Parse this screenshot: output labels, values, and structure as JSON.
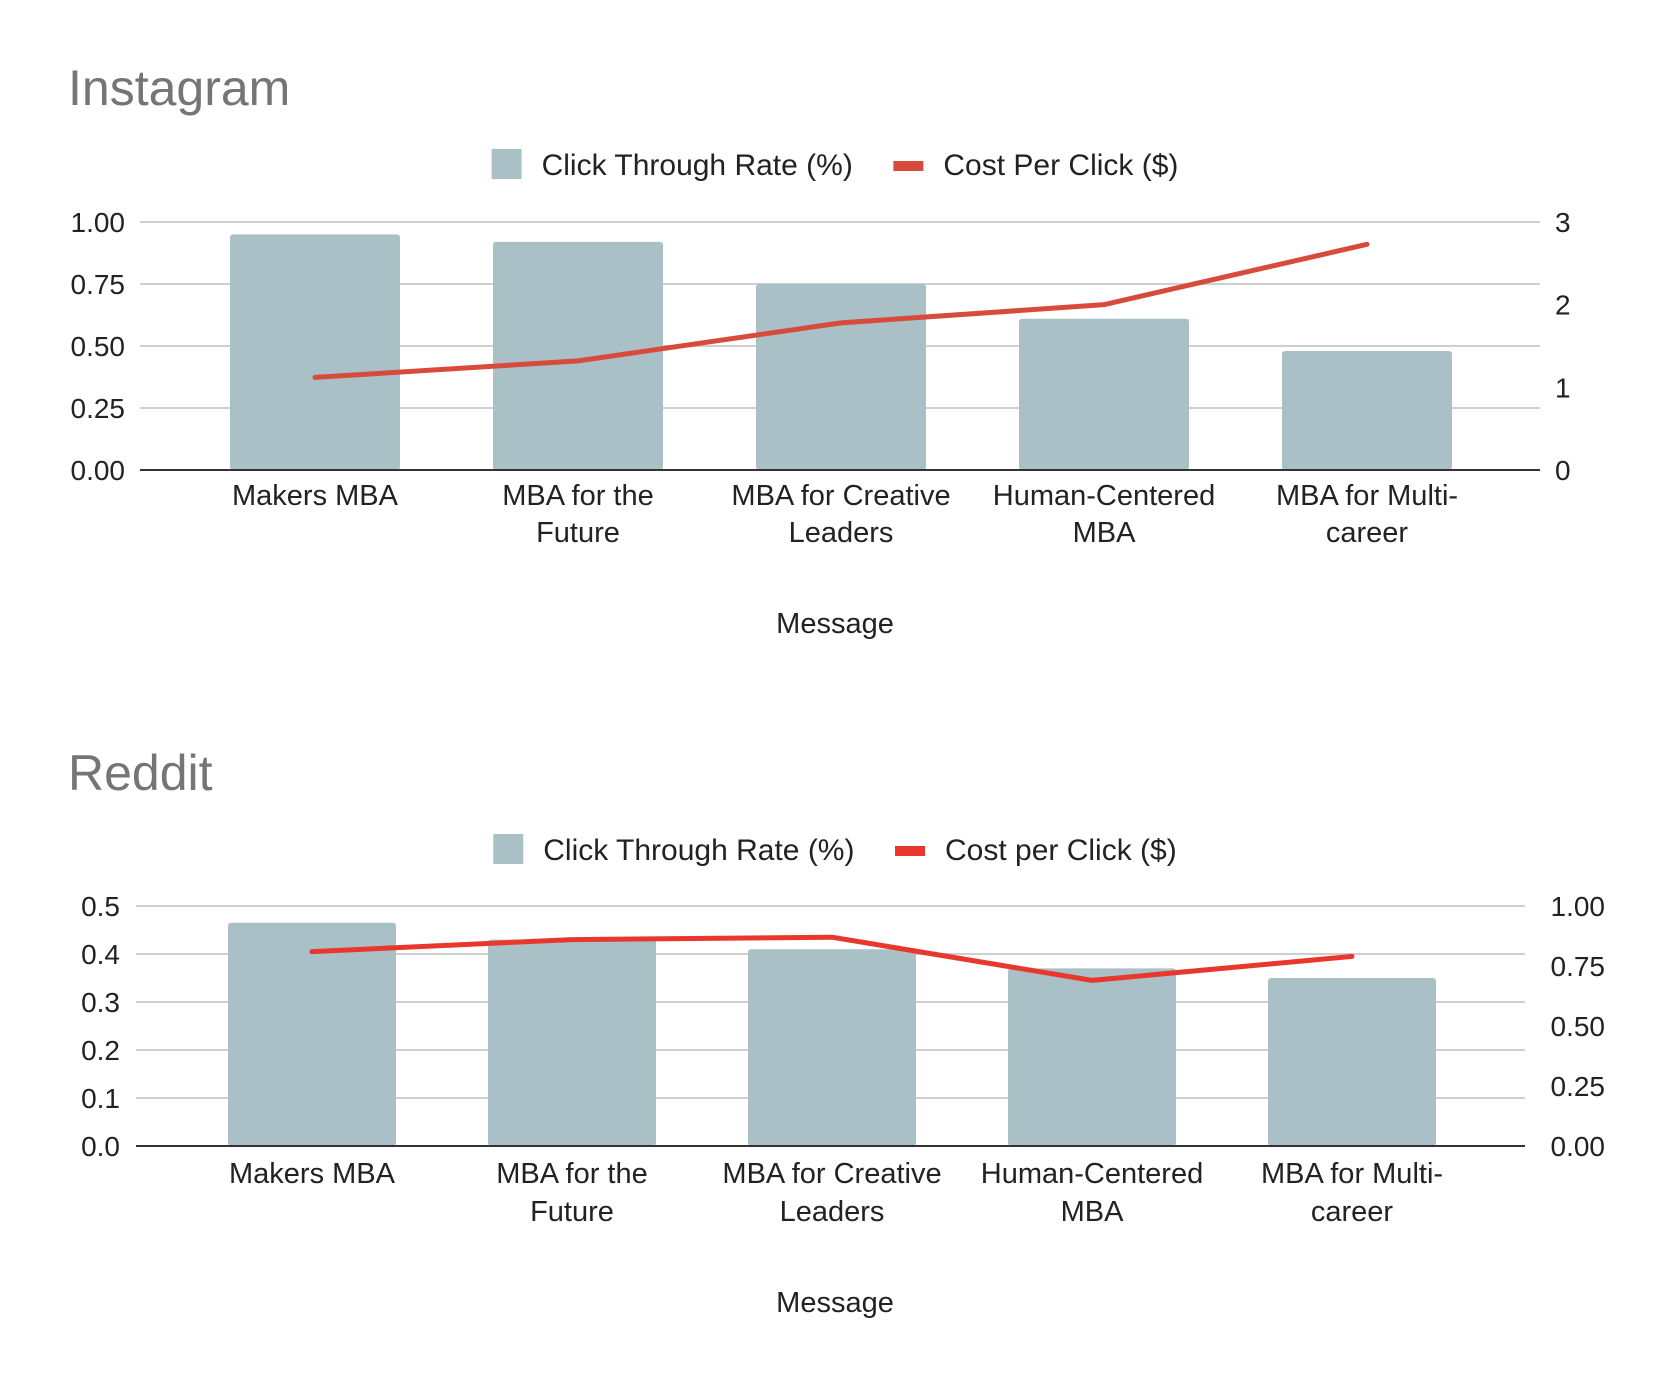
{
  "chart_data": [
    {
      "type": "bar",
      "title": "Instagram",
      "xlabel": "Message",
      "categories": [
        "Makers MBA",
        "MBA for the Future",
        "MBA for Creative Leaders",
        "Human-Centered MBA",
        "MBA for Multi-career"
      ],
      "category_lines": [
        [
          "Makers MBA"
        ],
        [
          "MBA for the",
          "Future"
        ],
        [
          "MBA for Creative",
          "Leaders"
        ],
        [
          "Human-Centered",
          "MBA"
        ],
        [
          "MBA for Multi-",
          "career"
        ]
      ],
      "series": [
        {
          "name": "Click Through Rate (%)",
          "type": "bar",
          "axis": "left",
          "values": [
            0.95,
            0.92,
            0.75,
            0.61,
            0.48
          ]
        },
        {
          "name": "Cost Per Click ($)",
          "type": "line",
          "axis": "right",
          "values": [
            1.12,
            1.32,
            1.78,
            2.0,
            2.73
          ]
        }
      ],
      "y_left": {
        "ylim": [
          0,
          1
        ],
        "ticks": [
          "0.00",
          "0.25",
          "0.50",
          "0.75",
          "1.00"
        ]
      },
      "y_right": {
        "ylim": [
          0,
          3
        ],
        "ticks": [
          "0",
          "1",
          "2",
          "3"
        ]
      },
      "grid": true,
      "legend_position": "top",
      "colors": {
        "bar": "#a9c1c6",
        "line": "#d84a3c"
      }
    },
    {
      "type": "bar",
      "title": "Reddit",
      "xlabel": "Message",
      "categories": [
        "Makers MBA",
        "MBA for the Future",
        "MBA for Creative Leaders",
        "Human-Centered MBA",
        "MBA for Multi-career"
      ],
      "category_lines": [
        [
          "Makers MBA"
        ],
        [
          "MBA for the",
          "Future"
        ],
        [
          "MBA for Creative",
          "Leaders"
        ],
        [
          "Human-Centered",
          "MBA"
        ],
        [
          "MBA for Multi-",
          "career"
        ]
      ],
      "series": [
        {
          "name": "Click Through Rate (%)",
          "type": "bar",
          "axis": "left",
          "values": [
            0.465,
            0.43,
            0.41,
            0.37,
            0.35
          ]
        },
        {
          "name": "Cost per Click ($)",
          "type": "line",
          "axis": "right",
          "values": [
            0.81,
            0.86,
            0.87,
            0.69,
            0.79
          ]
        }
      ],
      "y_left": {
        "ylim": [
          0,
          0.5
        ],
        "ticks": [
          "0.0",
          "0.1",
          "0.2",
          "0.3",
          "0.4",
          "0.5"
        ]
      },
      "y_right": {
        "ylim": [
          0,
          1
        ],
        "ticks": [
          "0.00",
          "0.25",
          "0.50",
          "0.75",
          "1.00"
        ]
      },
      "grid": true,
      "legend_position": "top",
      "colors": {
        "bar": "#a9c1c6",
        "line": "#e8382e"
      }
    }
  ]
}
